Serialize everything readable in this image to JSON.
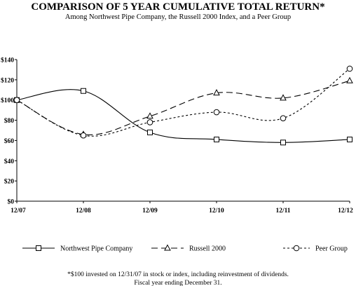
{
  "chart_data": {
    "type": "line",
    "title": "COMPARISON OF 5 YEAR CUMULATIVE TOTAL RETURN*",
    "subtitle": "Among Northwest Pipe Company, the Russell 2000 Index, and a Peer Group",
    "categories": [
      "12/07",
      "12/08",
      "12/09",
      "12/10",
      "12/11",
      "12/12"
    ],
    "y_ticks": [
      "$0",
      "$20",
      "$40",
      "$60",
      "$80",
      "$100",
      "$120",
      "$140"
    ],
    "ylim": [
      0,
      140
    ],
    "grid": false,
    "legend_position": "bottom",
    "series": [
      {
        "name": "Northwest Pipe Company",
        "marker": "square",
        "dash": "solid",
        "values": [
          100,
          109,
          68,
          61,
          58,
          61
        ]
      },
      {
        "name": "Russell 2000",
        "marker": "triangle",
        "dash": "long-dash",
        "values": [
          100,
          66,
          84,
          107,
          102,
          119
        ]
      },
      {
        "name": "Peer Group",
        "marker": "circle",
        "dash": "dotted",
        "values": [
          100,
          65,
          78,
          88,
          82,
          131
        ]
      }
    ],
    "footnote": [
      "*$100 invested on 12/31/07 in stock or index, including reinvestment of dividends.",
      "Fiscal year ending December 31."
    ]
  }
}
